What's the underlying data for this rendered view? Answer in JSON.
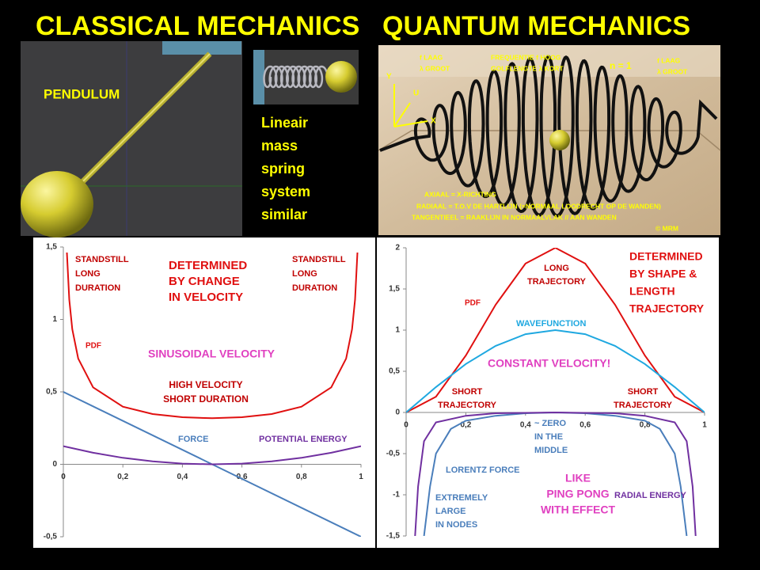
{
  "titles": [
    "CLASSICAL MECHANICS",
    "QUANTUM MECHANICS"
  ],
  "pendulum_label": "PENDULUM",
  "spring_caption": [
    "Lineair",
    "mass",
    "spring",
    "system",
    "similar"
  ],
  "spiral_labels": [
    "f LAAG",
    "λ GROOT",
    "FREQUENTIE f HOOG",
    "GOLFLENGTE λ KORT",
    "n = 1",
    "f LAAG",
    "λ GROOT",
    "Y",
    "U",
    "X",
    "AXIAAL = X-RICHTING",
    "RADIAAL =   T.O.V DE HARTLIJN (=NORMAAL LOODRECHT OP DE WANDEN)",
    "TANGENTIEEL = RAAKLIJN IN NORMAALVLAK // AAN WANDEN",
    "© MRM"
  ],
  "chart_data": [
    {
      "type": "line",
      "xlim": [
        0,
        1
      ],
      "ylim": [
        -0.5,
        1.5
      ],
      "xticks": [
        0,
        {
          "value": 0.2,
          "label": "0,2"
        },
        {
          "value": 0.4,
          "label": "0,4"
        },
        {
          "value": 0.6,
          "label": "0,6"
        },
        {
          "value": 0.8,
          "label": "0,8"
        },
        1
      ],
      "yticks": [
        {
          "value": -0.5,
          "label": "-0,5"
        },
        0,
        {
          "value": 0.5,
          "label": "0,5"
        },
        1,
        {
          "value": 1.5,
          "label": "1,5"
        }
      ],
      "grid": false,
      "series": [
        {
          "name": "PDF",
          "color": "#e01010",
          "x": [
            0.012,
            0.02,
            0.03,
            0.05,
            0.1,
            0.2,
            0.3,
            0.4,
            0.5,
            0.6,
            0.7,
            0.8,
            0.9,
            0.95,
            0.97,
            0.98,
            0.988
          ],
          "values": [
            1.462,
            1.137,
            0.933,
            0.73,
            0.531,
            0.398,
            0.347,
            0.325,
            0.318,
            0.325,
            0.347,
            0.398,
            0.531,
            0.73,
            0.933,
            1.137,
            1.462
          ]
        },
        {
          "name": "FORCE",
          "color": "#4a7ebb",
          "x": [
            0,
            1
          ],
          "values": [
            0.5,
            -0.5
          ]
        },
        {
          "name": "POTENTIAL ENERGY",
          "color": "#7030a0",
          "x": [
            0,
            0.1,
            0.2,
            0.3,
            0.4,
            0.5,
            0.6,
            0.7,
            0.8,
            0.9,
            1
          ],
          "values": [
            0.125,
            0.08,
            0.045,
            0.02,
            0.005,
            0,
            0.005,
            0.02,
            0.045,
            0.08,
            0.125
          ]
        }
      ],
      "annotations": [
        {
          "lines": [
            "STANDSTILL",
            "LONG",
            "DURATION"
          ],
          "color": "#c00000"
        },
        {
          "lines": [
            "DETERMINED",
            "BY CHANGE",
            "IN VELOCITY"
          ],
          "color": "#e01010"
        },
        {
          "lines": [
            "STANDSTILL",
            "LONG",
            "DURATION"
          ],
          "color": "#c00000"
        },
        {
          "lines": [
            "SINUSOIDAL VELOCITY"
          ],
          "color": "#e040c0"
        },
        {
          "lines": [
            "HIGH VELOCITY",
            "SHORT DURATION"
          ],
          "color": "#c00000"
        }
      ]
    },
    {
      "type": "line",
      "xlim": [
        0,
        1
      ],
      "ylim": [
        -1.5,
        2
      ],
      "xticks": [
        0,
        {
          "value": 0.2,
          "label": "0,2"
        },
        {
          "value": 0.4,
          "label": "0,4"
        },
        {
          "value": 0.6,
          "label": "0,6"
        },
        {
          "value": 0.8,
          "label": "0,8"
        },
        1
      ],
      "yticks": [
        {
          "value": -1.5,
          "label": "-1,5"
        },
        -1,
        {
          "value": -0.5,
          "label": "-0,5"
        },
        0,
        {
          "value": 0.5,
          "label": "0,5"
        },
        1,
        {
          "value": 1.5,
          "label": "1,5"
        },
        2
      ],
      "grid": false,
      "series": [
        {
          "name": "PDF",
          "color": "#e01010",
          "x": [
            0,
            0.1,
            0.2,
            0.3,
            0.4,
            0.5,
            0.6,
            0.7,
            0.8,
            0.9,
            1
          ],
          "values": [
            0,
            0.191,
            0.691,
            1.309,
            1.809,
            2,
            1.809,
            1.309,
            0.691,
            0.191,
            0
          ]
        },
        {
          "name": "WAVEFUNCTION",
          "color": "#1fa8e0",
          "x": [
            0,
            0.1,
            0.2,
            0.3,
            0.4,
            0.5,
            0.6,
            0.7,
            0.8,
            0.9,
            1
          ],
          "values": [
            0,
            0.309,
            0.588,
            0.809,
            0.951,
            1,
            0.951,
            0.809,
            0.588,
            0.309,
            0
          ]
        },
        {
          "name": "LORENTZ FORCE",
          "color": "#4a7ebb",
          "x": [
            0.06,
            0.08,
            0.1,
            0.15,
            0.2,
            0.3,
            0.4,
            0.5,
            0.6,
            0.7,
            0.8,
            0.85,
            0.9,
            0.92,
            0.94
          ],
          "values": [
            -1.5,
            -0.9,
            -0.5,
            -0.2,
            -0.1,
            -0.04,
            -0.01,
            0,
            -0.01,
            -0.04,
            -0.1,
            -0.2,
            -0.5,
            -0.9,
            -1.5
          ]
        },
        {
          "name": "RADIAL ENERGY",
          "color": "#7030a0",
          "x": [
            0.03,
            0.04,
            0.06,
            0.1,
            0.2,
            0.3,
            0.5,
            0.7,
            0.8,
            0.9,
            0.94,
            0.96,
            0.97
          ],
          "values": [
            -1.5,
            -0.9,
            -0.35,
            -0.12,
            -0.04,
            -0.01,
            0,
            -0.01,
            -0.04,
            -0.12,
            -0.35,
            -0.9,
            -1.5
          ]
        }
      ],
      "annotations": [
        {
          "lines": [
            "LONG",
            "TRAJECTORY"
          ],
          "color": "#c00000"
        },
        {
          "lines": [
            "DETERMINED",
            "BY SHAPE &",
            "LENGTH",
            "TRAJECTORY"
          ],
          "color": "#e01010"
        },
        {
          "lines": [
            "CONSTANT VELOCITY!"
          ],
          "color": "#e040c0"
        },
        {
          "lines": [
            "SHORT",
            "TRAJECTORY"
          ],
          "color": "#c00000"
        },
        {
          "lines": [
            "SHORT",
            "TRAJECTORY"
          ],
          "color": "#c00000"
        },
        {
          "lines": [
            "~ ZERO",
            "IN THE",
            "MIDDLE"
          ],
          "color": "#4a7ebb"
        },
        {
          "lines": [
            "LIKE",
            "PING PONG",
            "WITH EFFECT"
          ],
          "color": "#e040c0"
        },
        {
          "lines": [
            "EXTREMELY",
            "LARGE",
            "IN NODES"
          ],
          "color": "#4a7ebb"
        }
      ]
    }
  ]
}
